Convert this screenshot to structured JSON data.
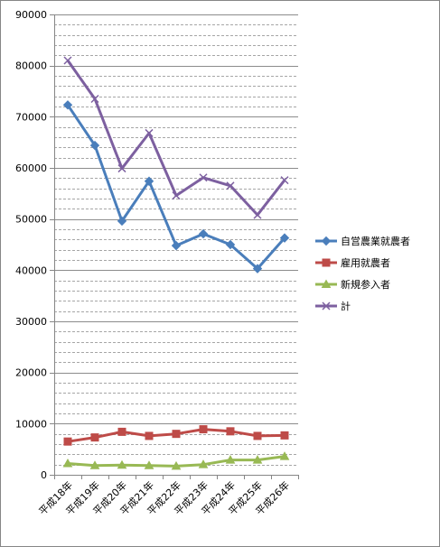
{
  "chart_data": {
    "type": "line",
    "title": "",
    "xlabel": "",
    "ylabel": "",
    "categories": [
      "平成18年",
      "平成19年",
      "平成20年",
      "平成21年",
      "平成22年",
      "平成23年",
      "平成24年",
      "平成25年",
      "平成26年"
    ],
    "ylim": [
      0,
      90000
    ],
    "yticks": [
      0,
      10000,
      20000,
      30000,
      40000,
      50000,
      60000,
      70000,
      80000,
      90000
    ],
    "ytick_labels": [
      "0",
      "10000",
      "20000",
      "30000",
      "40000",
      "50000",
      "60000",
      "70000",
      "80000",
      "90000"
    ],
    "minor_grid_step": 2000,
    "grid": true,
    "legend_position": "right",
    "series": [
      {
        "name": "自営農業就農者",
        "color": "#4a7ebb",
        "marker": "diamond",
        "values": [
          72300,
          64400,
          49600,
          57400,
          44800,
          47100,
          45000,
          40300,
          46300
        ]
      },
      {
        "name": "雇用就農者",
        "color": "#be4b48",
        "marker": "square",
        "values": [
          6500,
          7300,
          8400,
          7600,
          8000,
          8900,
          8500,
          7600,
          7700
        ]
      },
      {
        "name": "新規参入者",
        "color": "#98b954",
        "marker": "triangle",
        "values": [
          2200,
          1800,
          1900,
          1800,
          1700,
          2000,
          2900,
          2900,
          3600
        ]
      },
      {
        "name": "計",
        "color": "#7d60a0",
        "marker": "x",
        "values": [
          81000,
          73500,
          59900,
          66800,
          54600,
          58100,
          56500,
          50800,
          57600
        ]
      }
    ]
  }
}
